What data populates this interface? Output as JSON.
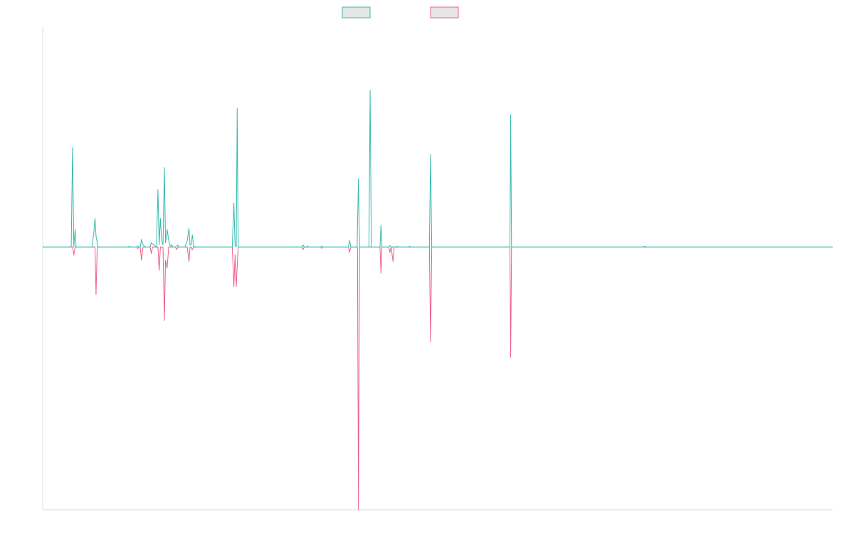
{
  "chart_data": {
    "type": "line",
    "title": "",
    "xlabel": "",
    "ylabel": "",
    "legend_placement": "top-center",
    "grid": false,
    "xlim": [
      0,
      1000
    ],
    "ylim": [
      -1,
      1
    ],
    "colors": {
      "series_a": "#36b8ad",
      "series_b": "#ee5d85",
      "axis": "#dddddd",
      "legend_fill": "#e6e6e6"
    },
    "series": [
      {
        "key": "a",
        "color": "#36b8ad",
        "points": [
          [
            0,
            0
          ],
          [
            36.1,
            0
          ],
          [
            37.8,
            0.45
          ],
          [
            39.4,
            0
          ],
          [
            41,
            0.08
          ],
          [
            42.4,
            0
          ],
          [
            62.5,
            0
          ],
          [
            64.8,
            0.07
          ],
          [
            66.2,
            0.13
          ],
          [
            67.5,
            0.05
          ],
          [
            70,
            0
          ],
          [
            108,
            0
          ],
          [
            109.5,
            0.003
          ],
          [
            111,
            0
          ],
          [
            119,
            0
          ],
          [
            120.3,
            0.006
          ],
          [
            121.5,
            0
          ],
          [
            123.5,
            0
          ],
          [
            125,
            0.035
          ],
          [
            127,
            0.01
          ],
          [
            130,
            0
          ],
          [
            136,
            0
          ],
          [
            137.5,
            0.02
          ],
          [
            139,
            0.015
          ],
          [
            141,
            0.008
          ],
          [
            144,
            0
          ],
          [
            145.9,
            0.26
          ],
          [
            147.4,
            0.01
          ],
          [
            149,
            0.13
          ],
          [
            150.5,
            0.03
          ],
          [
            152.3,
            0.01
          ],
          [
            154,
            0.36
          ],
          [
            155.5,
            0.02
          ],
          [
            157.5,
            0.08
          ],
          [
            159.5,
            0.03
          ],
          [
            161.5,
            0.005
          ],
          [
            163,
            0.01
          ],
          [
            165,
            0
          ],
          [
            168,
            0
          ],
          [
            169.5,
            0.005
          ],
          [
            171,
            0.01
          ],
          [
            172.5,
            0
          ],
          [
            180,
            0
          ],
          [
            183,
            0.03
          ],
          [
            185.2,
            0.085
          ],
          [
            186.5,
            0.01
          ],
          [
            188,
            0.01
          ],
          [
            189.4,
            0.055
          ],
          [
            191,
            0.003
          ],
          [
            194,
            0
          ],
          [
            240,
            0
          ],
          [
            242,
            0.2
          ],
          [
            243.5,
            0.01
          ],
          [
            245,
            0
          ],
          [
            246.2,
            0.63
          ],
          [
            247.4,
            0
          ],
          [
            328,
            0
          ],
          [
            329.5,
            0.01
          ],
          [
            331,
            0
          ],
          [
            334,
            0
          ],
          [
            335,
            0.005
          ],
          [
            336.2,
            0
          ],
          [
            352,
            0
          ],
          [
            353,
            0.005
          ],
          [
            354.3,
            0
          ],
          [
            387,
            0
          ],
          [
            388.5,
            0.03
          ],
          [
            390,
            0
          ],
          [
            398,
            0
          ],
          [
            399.7,
            0.31
          ],
          [
            401.1,
            0
          ],
          [
            413,
            0
          ],
          [
            414.5,
            0.71
          ],
          [
            416,
            0
          ],
          [
            427,
            0
          ],
          [
            428.2,
            0.1
          ],
          [
            429.5,
            0
          ],
          [
            438,
            0
          ],
          [
            439.5,
            0.008
          ],
          [
            441,
            0
          ],
          [
            447,
            0
          ],
          [
            448.5,
            0.003
          ],
          [
            450,
            0
          ],
          [
            463,
            0
          ],
          [
            464.5,
            0.003
          ],
          [
            466,
            0
          ],
          [
            489.5,
            0
          ],
          [
            491,
            0.42
          ],
          [
            492.5,
            0
          ],
          [
            591.5,
            0
          ],
          [
            592.4,
            0.6
          ],
          [
            593.5,
            0
          ],
          [
            760,
            0
          ],
          [
            762,
            0.003
          ],
          [
            764,
            0
          ],
          [
            1000,
            0
          ]
        ]
      },
      {
        "key": "b",
        "color": "#ee5d85",
        "points": [
          [
            0,
            0
          ],
          [
            37.8,
            0
          ],
          [
            39.4,
            -0.03
          ],
          [
            41,
            0
          ],
          [
            66.2,
            0
          ],
          [
            67.5,
            -0.18
          ],
          [
            69,
            0
          ],
          [
            119,
            0
          ],
          [
            120.3,
            -0.006
          ],
          [
            121.5,
            0
          ],
          [
            123.5,
            0
          ],
          [
            125,
            -0.05
          ],
          [
            127,
            0
          ],
          [
            136,
            0
          ],
          [
            137.5,
            -0.025
          ],
          [
            139,
            0
          ],
          [
            145.9,
            0
          ],
          [
            147.4,
            -0.09
          ],
          [
            149,
            0
          ],
          [
            152.3,
            0
          ],
          [
            154,
            -0.28
          ],
          [
            155.5,
            -0.05
          ],
          [
            157.5,
            -0.08
          ],
          [
            159.5,
            0
          ],
          [
            165,
            0
          ],
          [
            168,
            0
          ],
          [
            169.5,
            -0.01
          ],
          [
            171,
            0
          ],
          [
            183,
            0
          ],
          [
            185.2,
            -0.055
          ],
          [
            186.5,
            0
          ],
          [
            188,
            0
          ],
          [
            189.4,
            -0.01
          ],
          [
            191,
            0
          ],
          [
            240,
            0
          ],
          [
            242,
            -0.15
          ],
          [
            243.5,
            -0.03
          ],
          [
            245,
            -0.15
          ],
          [
            247.4,
            0
          ],
          [
            328,
            0
          ],
          [
            329.5,
            -0.01
          ],
          [
            331,
            0
          ],
          [
            352,
            0
          ],
          [
            353,
            -0.005
          ],
          [
            354.3,
            0
          ],
          [
            387,
            0
          ],
          [
            388.5,
            -0.02
          ],
          [
            390,
            0
          ],
          [
            398.5,
            0
          ],
          [
            399.7,
            -1.0
          ],
          [
            401.1,
            0
          ],
          [
            427,
            0
          ],
          [
            428.2,
            -0.1
          ],
          [
            429.5,
            0
          ],
          [
            438,
            0
          ],
          [
            439.5,
            -0.02
          ],
          [
            441,
            0
          ],
          [
            443.5,
            -0.055
          ],
          [
            445,
            0
          ],
          [
            489.5,
            0
          ],
          [
            491,
            -0.36
          ],
          [
            492.5,
            0
          ],
          [
            591.5,
            0
          ],
          [
            592.4,
            -0.42
          ],
          [
            593.5,
            0
          ],
          [
            1000,
            0
          ]
        ]
      }
    ]
  }
}
